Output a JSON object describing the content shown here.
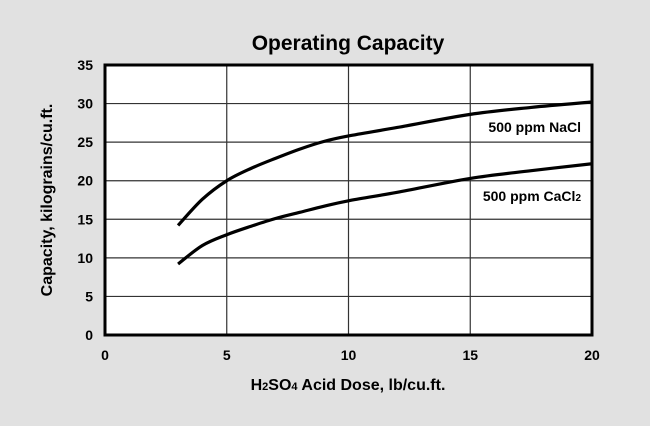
{
  "chart_data": {
    "type": "line",
    "title": "Operating Capacity",
    "xlabel": "H2SO4 Acid Dose, lb/cu.ft.",
    "xlabel_parts": {
      "h": "H",
      "sub1": "2",
      "so": "SO",
      "sub2": "4",
      "rest": " Acid Dose, lb/cu.ft."
    },
    "ylabel": "Capacity, kilograins/cu.ft.",
    "xlim": [
      0,
      20
    ],
    "ylim": [
      0,
      35
    ],
    "xticks": [
      "0",
      "5",
      "10",
      "15",
      "20"
    ],
    "yticks": [
      "0",
      "5",
      "10",
      "15",
      "20",
      "25",
      "30",
      "35"
    ],
    "grid": true,
    "legend_position": "inline labels at right",
    "series": [
      {
        "name": "500 ppm NaCl",
        "label_main": "500 ppm NaCl",
        "label_sub": "",
        "x": [
          3,
          4,
          5,
          6,
          7,
          8,
          9,
          10,
          12,
          15,
          17.5,
          20
        ],
        "y": [
          14.2,
          17.6,
          20.0,
          21.6,
          22.9,
          24.1,
          25.1,
          25.8,
          26.9,
          28.6,
          29.5,
          30.2
        ]
      },
      {
        "name": "500 ppm CaCl2",
        "label_main": "500 ppm CaCl",
        "label_sub": "2",
        "x": [
          3,
          4,
          5,
          6,
          7,
          8,
          9,
          10,
          12,
          15,
          17.5,
          20
        ],
        "y": [
          9.2,
          11.6,
          13.0,
          14.1,
          15.1,
          15.9,
          16.7,
          17.4,
          18.5,
          20.3,
          21.3,
          22.2
        ]
      }
    ]
  }
}
